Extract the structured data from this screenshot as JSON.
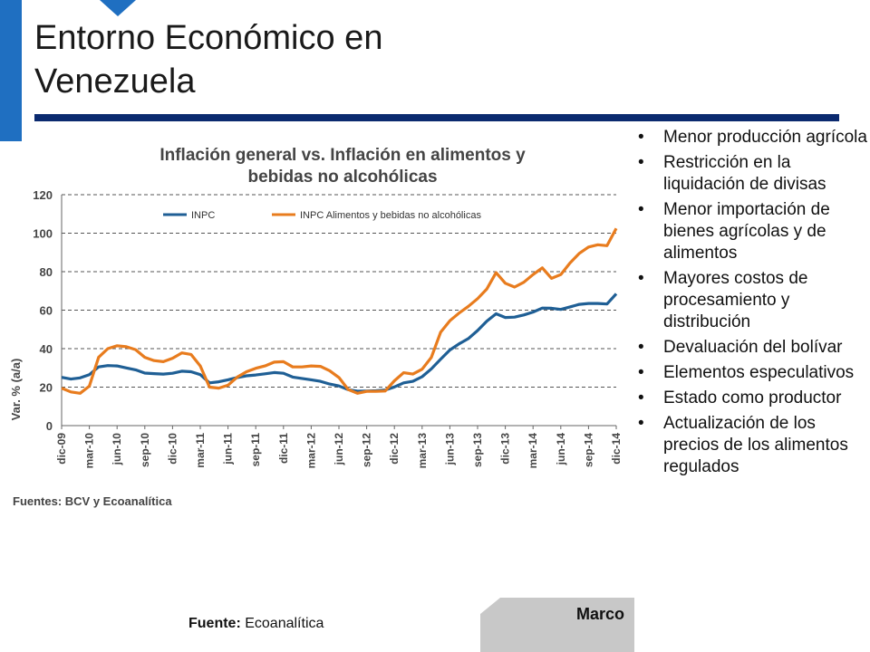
{
  "slide": {
    "title_line1": "Entorno Económico en",
    "title_line2": "Venezuela",
    "footer_label": "Marco",
    "source_label": "Fuente:",
    "source_value": "Ecoanalítica"
  },
  "bullets": [
    "Menor producción agrícola",
    "Restricción en la liquidación de divisas",
    "Menor importación de bienes agrícolas y de alimentos",
    "Mayores costos de procesamiento y distribución",
    "Devaluación del bolívar",
    "Elementos especulativos",
    "Estado como productor",
    "Actualización de los precios de los alimentos regulados"
  ],
  "colors": {
    "accent_blue": "#0b2a6f",
    "corner_blue": "#1f6fc1",
    "series_inpc": "#1f5f95",
    "series_food": "#e87c1e",
    "footer_gray": "#c8c8c8"
  },
  "chart_data": {
    "type": "line",
    "title": "Inflación general vs. Inflación en alimentos y bebidas no alcohólicas",
    "ylabel": "Var. % (a/a)",
    "xlabel": "",
    "source": "Fuentes: BCV y Ecoanalítica",
    "ylim": [
      0,
      120
    ],
    "yticks": [
      0,
      20,
      40,
      60,
      80,
      100,
      120
    ],
    "grid": "horizontal-dashed",
    "legend": "top",
    "xtick_labels": [
      "dic-09",
      "mar-10",
      "jun-10",
      "sep-10",
      "dic-10",
      "mar-11",
      "jun-11",
      "sep-11",
      "dic-11",
      "mar-12",
      "jun-12",
      "sep-12",
      "dic-12",
      "mar-13",
      "jun-13",
      "sep-13",
      "dic-13",
      "mar-14",
      "jun-14",
      "sep-14",
      "dic-14"
    ],
    "x": [
      "dic-09",
      "ene-10",
      "feb-10",
      "mar-10",
      "abr-10",
      "may-10",
      "jun-10",
      "jul-10",
      "ago-10",
      "sep-10",
      "oct-10",
      "nov-10",
      "dic-10",
      "ene-11",
      "feb-11",
      "mar-11",
      "abr-11",
      "may-11",
      "jun-11",
      "jul-11",
      "ago-11",
      "sep-11",
      "oct-11",
      "nov-11",
      "dic-11",
      "ene-12",
      "feb-12",
      "mar-12",
      "abr-12",
      "may-12",
      "jun-12",
      "jul-12",
      "ago-12",
      "sep-12",
      "oct-12",
      "nov-12",
      "dic-12",
      "ene-13",
      "feb-13",
      "mar-13",
      "abr-13",
      "may-13",
      "jun-13",
      "jul-13",
      "ago-13",
      "sep-13",
      "oct-13",
      "nov-13",
      "dic-13",
      "ene-14",
      "feb-14",
      "mar-14",
      "abr-14",
      "may-14",
      "jun-14",
      "jul-14",
      "ago-14",
      "sep-14",
      "oct-14",
      "nov-14",
      "dic-14"
    ],
    "series": [
      {
        "name": "INPC",
        "values": [
          25.1,
          24.2,
          24.8,
          26.5,
          30.5,
          31.2,
          31.0,
          30.0,
          29.0,
          27.3,
          27.0,
          26.8,
          27.2,
          28.3,
          28.0,
          26.5,
          22.2,
          22.8,
          23.8,
          25.0,
          25.9,
          26.3,
          26.9,
          27.6,
          27.2,
          25.2,
          24.5,
          23.8,
          23.0,
          21.6,
          20.6,
          18.7,
          17.9,
          18.0,
          18.1,
          18.5,
          20.1,
          22.2,
          23.0,
          25.4,
          29.5,
          34.5,
          39.3,
          42.5,
          45.2,
          49.4,
          54.3,
          58.1,
          56.2,
          56.4,
          57.5,
          59.0,
          61.1,
          61.0,
          60.4,
          61.7,
          63.0,
          63.5,
          63.5,
          63.2,
          68.5
        ]
      },
      {
        "name": "INPC Alimentos y bebidas no alcohólicas",
        "values": [
          19.5,
          17.5,
          16.8,
          20.5,
          35.5,
          40.0,
          41.5,
          41.0,
          39.5,
          35.5,
          33.8,
          33.2,
          35.0,
          37.8,
          37.0,
          31.0,
          20.0,
          19.5,
          21.0,
          25.2,
          28.0,
          29.8,
          31.0,
          33.0,
          33.2,
          30.5,
          30.5,
          31.0,
          30.8,
          28.5,
          25.0,
          18.8,
          16.8,
          17.8,
          17.8,
          18.0,
          23.3,
          27.5,
          26.8,
          29.3,
          35.5,
          48.5,
          54.5,
          58.5,
          62.0,
          66.0,
          71.0,
          79.5,
          74.0,
          72.0,
          74.5,
          78.5,
          82.0,
          76.5,
          78.5,
          84.5,
          89.5,
          92.8,
          94.0,
          93.5,
          102.5
        ]
      }
    ]
  }
}
